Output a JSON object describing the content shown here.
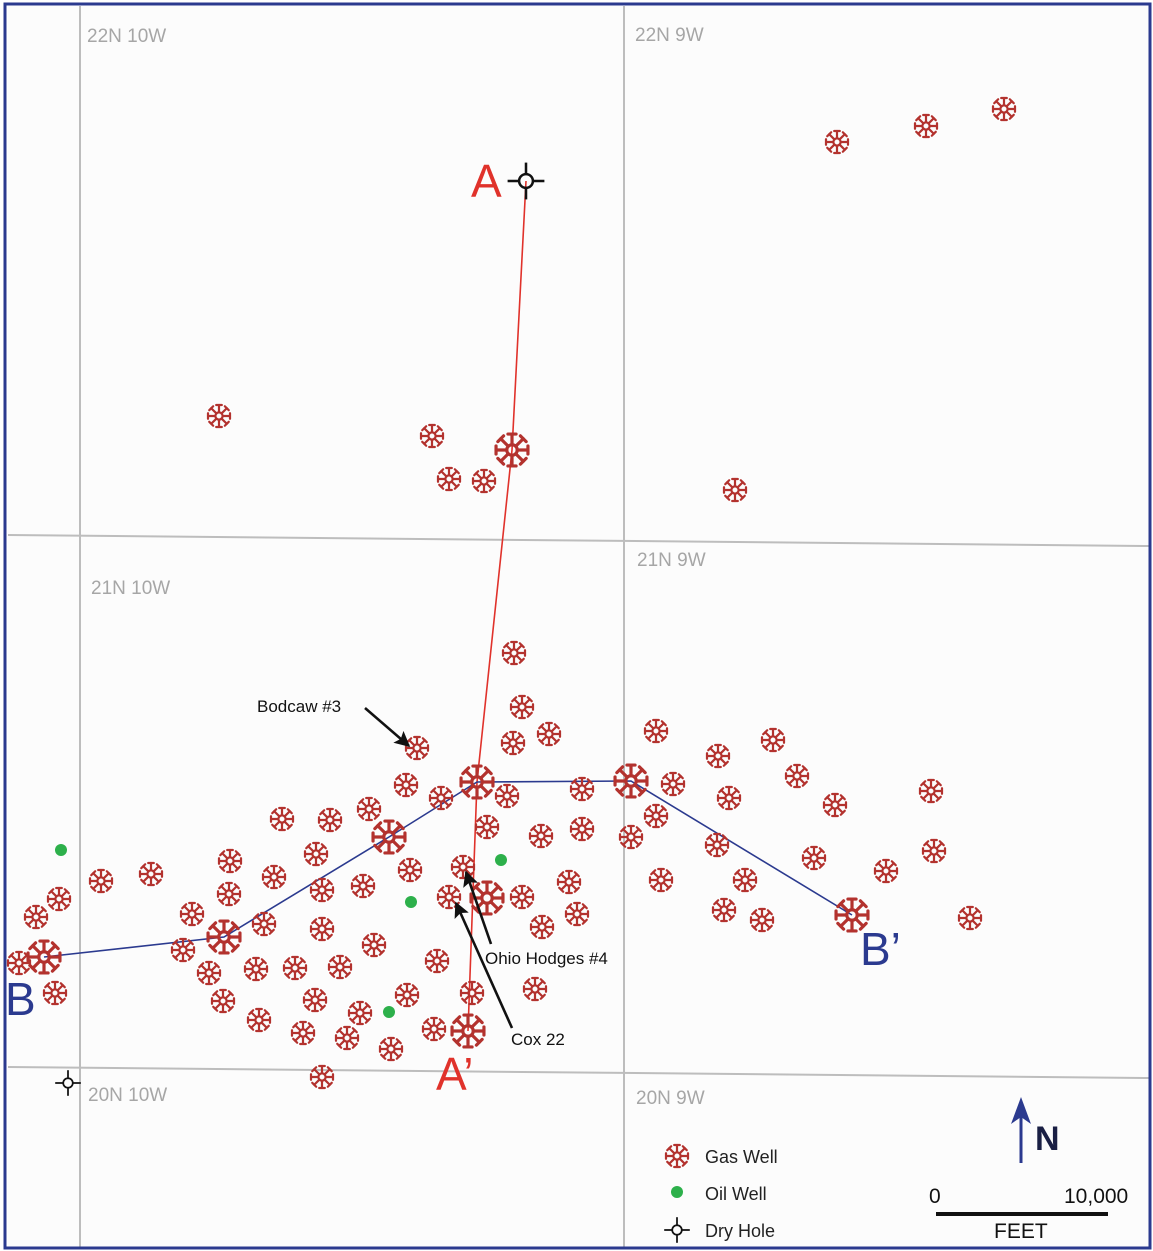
{
  "colors": {
    "frame": "#2b3a8f",
    "grid": "#bdbdbd",
    "gas": "#b3322e",
    "oil": "#2db04b",
    "dry": "#111111",
    "line_a": "#e0322b",
    "line_b": "#2b3a8f",
    "township_text": "#a6a6a6"
  },
  "townships": [
    "22N 10W",
    "22N 9W",
    "21N 10W",
    "21N 9W",
    "20N 10W",
    "20N 9W"
  ],
  "sections": {
    "a_start": "A",
    "a_end": "A’",
    "b_start": "B",
    "b_end": "B’"
  },
  "callouts": {
    "bodcaw": "Bodcaw #3",
    "ohio": "Ohio Hodges #4",
    "cox": "Cox 22"
  },
  "legend": {
    "gas_label": "Gas Well",
    "oil_label": "Oil Well",
    "dry_label": "Dry Hole"
  },
  "north_label": "N",
  "scale": {
    "start": "0",
    "end": "10,000",
    "unit": "FEET"
  },
  "icons": {
    "gas": "gas-well-icon",
    "oil": "oil-well-icon",
    "dry": "dry-hole-icon",
    "north": "north-arrow-icon"
  }
}
